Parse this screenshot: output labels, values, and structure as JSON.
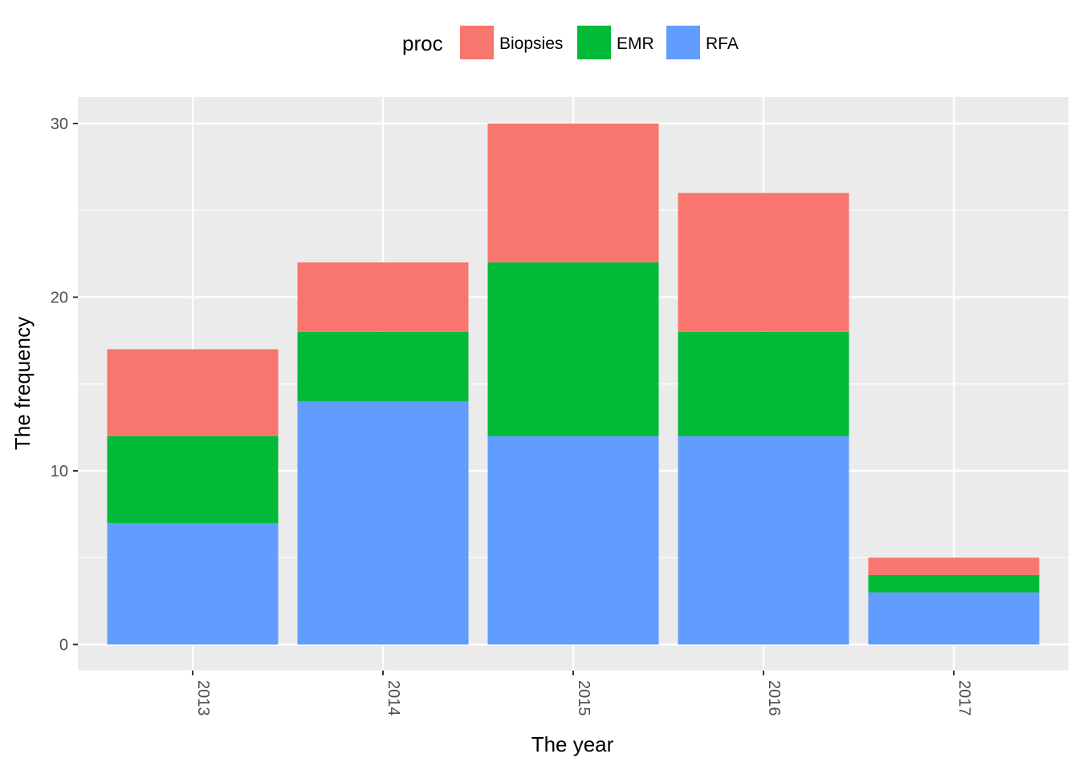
{
  "chart_data": {
    "type": "bar",
    "stacked": true,
    "title": "",
    "xlabel": "The year",
    "ylabel": "The frequency",
    "categories": [
      "2013",
      "2014",
      "2015",
      "2016",
      "2017"
    ],
    "series": [
      {
        "name": "RFA",
        "values": [
          7,
          14,
          12,
          12,
          3
        ],
        "color": "#619CFF"
      },
      {
        "name": "EMR",
        "values": [
          5,
          4,
          10,
          6,
          1
        ],
        "color": "#00BA38"
      },
      {
        "name": "Biopsies",
        "values": [
          5,
          4,
          8,
          8,
          1
        ],
        "color": "#F8766D"
      }
    ],
    "ylim": [
      0,
      31.5
    ],
    "yticks": [
      0,
      10,
      20,
      30
    ],
    "x_tick_rotation": "vertical",
    "grid": true,
    "legend": {
      "title": "proc",
      "position": "top",
      "entries": [
        {
          "name": "Biopsies",
          "color": "#F8766D"
        },
        {
          "name": "EMR",
          "color": "#00BA38"
        },
        {
          "name": "RFA",
          "color": "#619CFF"
        }
      ]
    },
    "panel_background": "#EBEBEB",
    "grid_color": "#FFFFFF"
  }
}
